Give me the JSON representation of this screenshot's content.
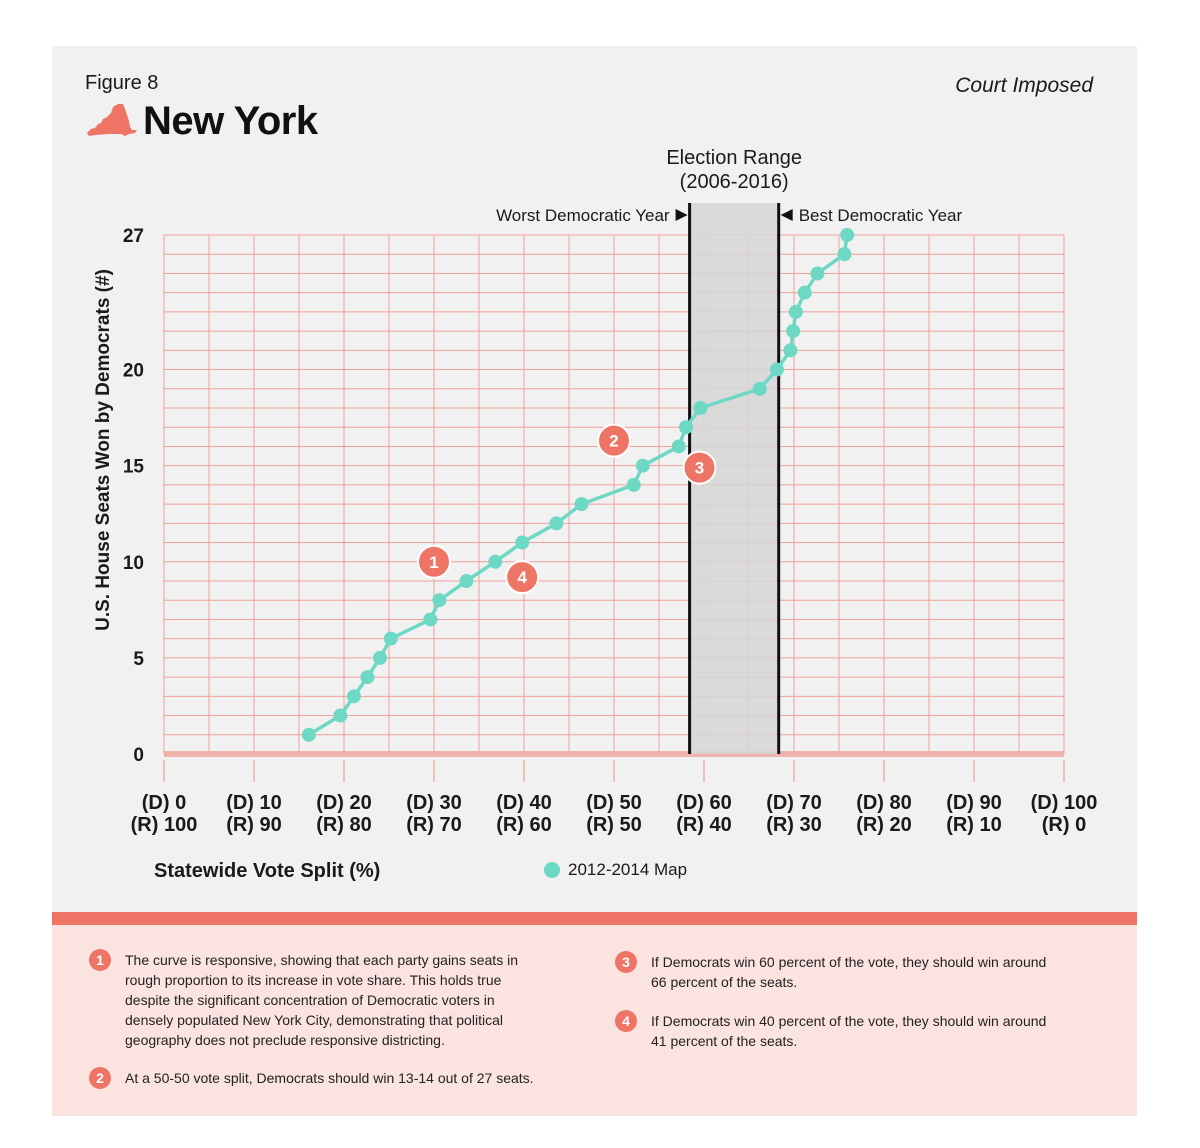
{
  "header": {
    "figure_label": "Figure 8",
    "title": "New York",
    "court_label": "Court Imposed"
  },
  "colors": {
    "panel_bg": "#f1f1f1",
    "grid": "#f0a096",
    "series": "#6dd9c4",
    "annotation": "#ee7565",
    "election_band": "#d6d6d6",
    "notes_bg": "#fbe3e0"
  },
  "chart_data": {
    "type": "line",
    "title": "New York",
    "xlabel": "Statewide Vote Split (%)",
    "ylabel": "U.S. House Seats Won by Democrats (#)",
    "xlim": [
      0,
      100
    ],
    "ylim": [
      0,
      27
    ],
    "x_ticks": [
      {
        "value": 0,
        "line1": "(D) 0",
        "line2": "(R) 100"
      },
      {
        "value": 10,
        "line1": "(D) 10",
        "line2": "(R) 90"
      },
      {
        "value": 20,
        "line1": "(D) 20",
        "line2": "(R) 80"
      },
      {
        "value": 30,
        "line1": "(D) 30",
        "line2": "(R) 70"
      },
      {
        "value": 40,
        "line1": "(D) 40",
        "line2": "(R) 60"
      },
      {
        "value": 50,
        "line1": "(D) 50",
        "line2": "(R) 50"
      },
      {
        "value": 60,
        "line1": "(D) 60",
        "line2": "(R) 40"
      },
      {
        "value": 70,
        "line1": "(D) 70",
        "line2": "(R) 30"
      },
      {
        "value": 80,
        "line1": "(D) 80",
        "line2": "(R) 20"
      },
      {
        "value": 90,
        "line1": "(D) 90",
        "line2": "(R) 10"
      },
      {
        "value": 100,
        "line1": "(D) 100",
        "line2": "(R) 0"
      }
    ],
    "y_ticks": [
      "0",
      "5",
      "10",
      "15",
      "20",
      "27"
    ],
    "series": [
      {
        "name": "2012-2014 Map",
        "x": [
          16.1,
          19.6,
          21.1,
          22.6,
          24.0,
          25.2,
          29.6,
          30.6,
          33.6,
          36.8,
          39.8,
          43.6,
          46.4,
          52.2,
          53.2,
          57.2,
          58.0,
          59.6,
          66.2,
          68.1,
          69.6,
          69.9,
          70.2,
          71.2,
          72.6,
          75.6,
          75.9
        ],
        "y": [
          1,
          2,
          3,
          4,
          5,
          6,
          7,
          8,
          9,
          10,
          11,
          12,
          13,
          14,
          15,
          16,
          17,
          18,
          19,
          20,
          21,
          22,
          23,
          24,
          25,
          26,
          27
        ]
      }
    ],
    "election_range": {
      "label_line1": "Election Range",
      "label_line2": "(2006-2016)",
      "x_start": 58.4,
      "x_end": 68.3,
      "worst_label": "Worst Democratic Year",
      "best_label": "Best Democratic Year"
    },
    "annotations": [
      {
        "num": "1",
        "x": 30.0,
        "y": 10.0
      },
      {
        "num": "2",
        "x": 50.0,
        "y": 16.3
      },
      {
        "num": "3",
        "x": 59.5,
        "y": 14.9
      },
      {
        "num": "4",
        "x": 39.8,
        "y": 9.2
      }
    ],
    "grid": true,
    "legend_position": "bottom-center"
  },
  "notes": [
    {
      "num": "1",
      "text": "The curve is responsive, showing that each party gains seats in\nrough proportion to its increase in vote share. This holds true\ndespite the significant concentration of Democratic voters in\ndensely populated New York City, demonstrating that political\ngeography does not preclude responsive districting."
    },
    {
      "num": "2",
      "text": "At a 50-50 vote split, Democrats should win 13-14 out of 27 seats."
    },
    {
      "num": "3",
      "text": "If Democrats win 60 percent of the vote, they should win around\n66 percent of the seats."
    },
    {
      "num": "4",
      "text": "If Democrats win 40 percent of the vote, they should win around\n41 percent of the seats."
    }
  ]
}
